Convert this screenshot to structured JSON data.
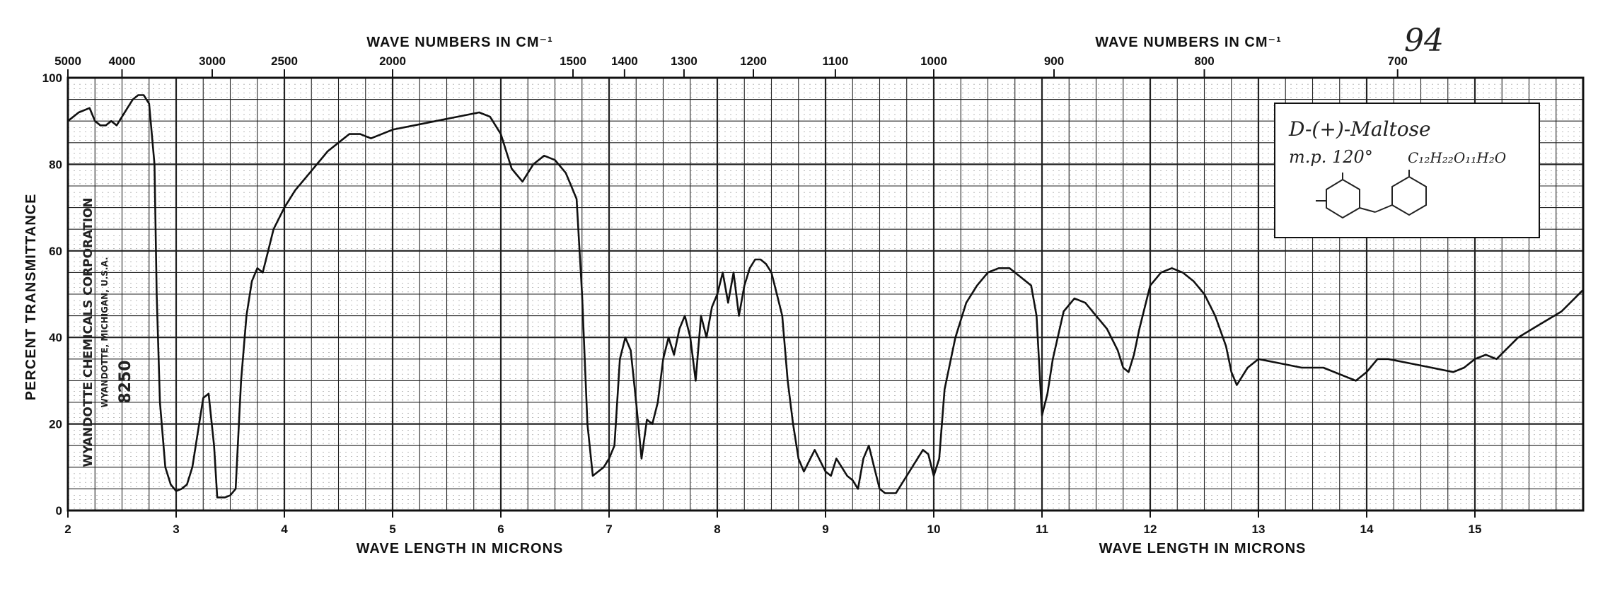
{
  "page_number": "94",
  "chart_data": {
    "type": "line",
    "title": "",
    "xlabel_bottom": "WAVE LENGTH IN MICRONS",
    "xlabel_top": "WAVE NUMBERS IN CM⁻¹",
    "ylabel": "PERCENT TRANSMITTANCE",
    "xlim": [
      2,
      16
    ],
    "ylim": [
      0,
      100
    ],
    "grid": true,
    "x_ticks": [
      {
        "v": 2,
        "label": "2"
      },
      {
        "v": 3,
        "label": "3"
      },
      {
        "v": 4,
        "label": "4"
      },
      {
        "v": 5,
        "label": "5"
      },
      {
        "v": 6,
        "label": "6"
      },
      {
        "v": 7,
        "label": "7"
      },
      {
        "v": 8,
        "label": "8"
      },
      {
        "v": 9,
        "label": "9"
      },
      {
        "v": 10,
        "label": "10"
      },
      {
        "v": 11,
        "label": "11"
      },
      {
        "v": 12,
        "label": "12"
      },
      {
        "v": 13,
        "label": "13"
      },
      {
        "v": 14,
        "label": "14"
      },
      {
        "v": 15,
        "label": "15"
      }
    ],
    "y_ticks": [
      {
        "v": 0,
        "label": "0"
      },
      {
        "v": 20,
        "label": "20"
      },
      {
        "v": 40,
        "label": "40"
      },
      {
        "v": 60,
        "label": "60"
      },
      {
        "v": 80,
        "label": "80"
      },
      {
        "v": 100,
        "label": "100"
      }
    ],
    "top_ticks": [
      {
        "v": 5000,
        "label": "5000"
      },
      {
        "v": 4000,
        "label": "4000"
      },
      {
        "v": 3000,
        "label": "3000"
      },
      {
        "v": 2500,
        "label": "2500"
      },
      {
        "v": 2000,
        "label": "2000"
      },
      {
        "v": 1500,
        "label": "1500"
      },
      {
        "v": 1400,
        "label": "1400"
      },
      {
        "v": 1300,
        "label": "1300"
      },
      {
        "v": 1200,
        "label": "1200"
      },
      {
        "v": 1100,
        "label": "1100"
      },
      {
        "v": 1000,
        "label": "1000"
      },
      {
        "v": 900,
        "label": "900"
      },
      {
        "v": 800,
        "label": "800"
      },
      {
        "v": 700,
        "label": "700"
      }
    ],
    "series": [
      {
        "x": [
          2.0,
          2.1,
          2.2,
          2.25,
          2.3,
          2.35,
          2.4,
          2.45,
          2.5,
          2.55,
          2.6,
          2.65,
          2.7,
          2.75,
          2.8,
          2.82,
          2.85,
          2.9,
          2.95,
          3.0,
          3.05,
          3.1,
          3.15,
          3.2,
          3.25,
          3.3,
          3.35,
          3.38,
          3.45,
          3.5,
          3.55,
          3.6,
          3.65,
          3.7,
          3.75,
          3.8,
          3.85,
          3.9,
          4.0,
          4.1,
          4.2,
          4.3,
          4.4,
          4.5,
          4.6,
          4.7,
          4.8,
          5.0,
          5.2,
          5.4,
          5.6,
          5.8,
          5.9,
          6.0,
          6.1,
          6.2,
          6.3,
          6.4,
          6.5,
          6.6,
          6.65,
          6.7,
          6.75,
          6.8,
          6.85,
          6.9,
          6.95,
          7.0,
          7.05,
          7.1,
          7.15,
          7.2,
          7.25,
          7.3,
          7.35,
          7.4,
          7.45,
          7.5,
          7.55,
          7.6,
          7.65,
          7.7,
          7.75,
          7.8,
          7.85,
          7.9,
          7.95,
          8.0,
          8.05,
          8.1,
          8.15,
          8.2,
          8.25,
          8.3,
          8.35,
          8.4,
          8.45,
          8.5,
          8.55,
          8.6,
          8.65,
          8.7,
          8.75,
          8.8,
          8.9,
          9.0,
          9.05,
          9.1,
          9.15,
          9.2,
          9.25,
          9.3,
          9.35,
          9.4,
          9.45,
          9.5,
          9.55,
          9.6,
          9.65,
          9.7,
          9.8,
          9.9,
          9.95,
          10.0,
          10.05,
          10.1,
          10.2,
          10.3,
          10.4,
          10.5,
          10.6,
          10.7,
          10.8,
          10.9,
          10.95,
          11.0,
          11.05,
          11.1,
          11.2,
          11.3,
          11.4,
          11.5,
          11.6,
          11.7,
          11.75,
          11.8,
          11.85,
          11.9,
          12.0,
          12.1,
          12.2,
          12.3,
          12.4,
          12.5,
          12.6,
          12.7,
          12.75,
          12.8,
          12.85,
          12.9,
          13.0,
          13.2,
          13.4,
          13.6,
          13.8,
          13.9,
          14.0,
          14.1,
          14.2,
          14.4,
          14.6,
          14.8,
          14.9,
          15.0,
          15.1,
          15.2,
          15.4,
          15.6,
          15.8,
          16.0
        ],
        "y": [
          90,
          92,
          93,
          90,
          89,
          89,
          90,
          89,
          91,
          93,
          95,
          96,
          96,
          94,
          80,
          50,
          25,
          10,
          6,
          4.5,
          5,
          6,
          10,
          18,
          26,
          27,
          15,
          3,
          3,
          3.5,
          5,
          30,
          45,
          53,
          56,
          55,
          60,
          65,
          70,
          74,
          77,
          80,
          83,
          85,
          87,
          87,
          86,
          88,
          89,
          90,
          91,
          92,
          91,
          87,
          79,
          76,
          80,
          82,
          81,
          78,
          75,
          72,
          50,
          20,
          8,
          9,
          10,
          12,
          15,
          35,
          40,
          37,
          25,
          12,
          21,
          20,
          25,
          35,
          40,
          36,
          42,
          45,
          40,
          30,
          45,
          40,
          47,
          50,
          55,
          48,
          55,
          45,
          52,
          56,
          58,
          58,
          57,
          55,
          50,
          45,
          30,
          20,
          12,
          9,
          14,
          9,
          8,
          12,
          10,
          8,
          7,
          5,
          12,
          15,
          10,
          5,
          4,
          4,
          4,
          6,
          10,
          14,
          13,
          8,
          12,
          28,
          40,
          48,
          52,
          55,
          56,
          56,
          54,
          52,
          45,
          22,
          27,
          35,
          46,
          49,
          48,
          45,
          42,
          37,
          33,
          32,
          36,
          42,
          52,
          55,
          56,
          55,
          53,
          50,
          45,
          38,
          32,
          29,
          31,
          33,
          35,
          34,
          33,
          33,
          31,
          30,
          32,
          35,
          35,
          34,
          33,
          32,
          33,
          35,
          36,
          35,
          40,
          43,
          46,
          51
        ]
      }
    ]
  },
  "side_label": {
    "company": "WYANDOTTE CHEMICALS CORPORATION",
    "city": "WYANDOTTE, MICHIGAN, U.S.A.",
    "number": "8250"
  },
  "annotation": {
    "name": "D-(+)-Maltose",
    "mp": "m.p. 120°",
    "formula": "C₁₂H₂₂O₁₁H₂O"
  }
}
